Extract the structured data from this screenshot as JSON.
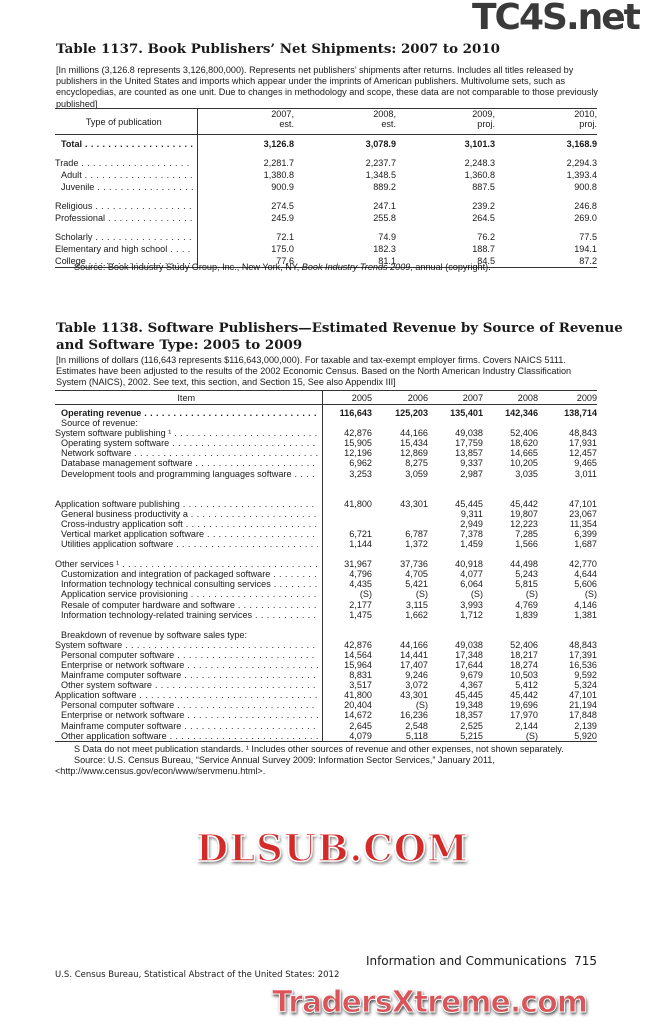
{
  "t1137": {
    "title": "Table 1137. Book Publishers’ Net Shipments: 2007 to 2010",
    "headnote": "[In millions (3,126.8 represents 3,126,800,000). Represents net publishers’ shipments after returns. Includes all titles released by publishers in the United States and  imports which appear under the imprints of American publishers. Multivolume sets, such as encyclopedias, are counted as one unit. Due to changes in methodology and scope, these data are not comparable to those previously published]",
    "stub_header": "Type of publication",
    "columns": [
      [
        "2007,",
        "est."
      ],
      [
        "2008,",
        "est."
      ],
      [
        "2009,",
        "proj."
      ],
      [
        "2010,",
        "proj."
      ]
    ],
    "rows": [
      {
        "label": "Total",
        "indent": 1,
        "bold": true,
        "values": [
          "3,126.8",
          "3,078.9",
          "3,101.3",
          "3,168.9"
        ]
      },
      {
        "gap": true
      },
      {
        "label": "Trade",
        "indent": 0,
        "values": [
          "2,281.7",
          "2,237.7",
          "2,248.3",
          "2,294.3"
        ]
      },
      {
        "label": "Adult",
        "indent": 1,
        "values": [
          "1,380.8",
          "1,348.5",
          "1,360.8",
          "1,393.4"
        ]
      },
      {
        "label": "Juvenile",
        "indent": 1,
        "values": [
          "900.9",
          "889.2",
          "887.5",
          "900.8"
        ]
      },
      {
        "gap": true
      },
      {
        "label": "Religious",
        "indent": 0,
        "values": [
          "274.5",
          "247.1",
          "239.2",
          "246.8"
        ]
      },
      {
        "label": "Professional",
        "indent": 0,
        "values": [
          "245.9",
          "255.8",
          "264.5",
          "269.0"
        ]
      },
      {
        "gap": true
      },
      {
        "label": "Scholarly",
        "indent": 0,
        "values": [
          "72.1",
          "74.9",
          "76.2",
          "77.5"
        ]
      },
      {
        "label": "Elementary and high school",
        "indent": 0,
        "values": [
          "175.0",
          "182.3",
          "188.7",
          "194.1"
        ]
      },
      {
        "label": "College",
        "indent": 0,
        "values": [
          "77.6",
          "81.1",
          "84.5",
          "87.2"
        ]
      }
    ],
    "source_prefix": "Source: Book Industry Study Group, Inc., New York, NY, ",
    "source_italic": "Book Industry Trends 2009",
    "source_suffix": ", annual (copyright)."
  },
  "t1138": {
    "title_line1": "Table 1138. Software Publishers—Estimated Revenue by Source of Revenue",
    "title_line2": "and Software Type: 2005 to 2009",
    "headnote": "[In millions of dollars (116,643 represents $116,643,000,000). For taxable and tax-exempt employer firms. Covers NAICS 5111. Estimates have been adjusted to the  results of the 2002 Economic Census. Based on the North American Industry Classification System (NAICS), 2002. See text, this section, and Section 15, See also Appendix III]",
    "stub_header": "Item",
    "columns": [
      "2005",
      "2006",
      "2007",
      "2008",
      "2009"
    ],
    "rows": [
      {
        "label": "Operating revenue",
        "indent": 1,
        "bold": true,
        "values": [
          "116,643",
          "125,203",
          "135,401",
          "142,346",
          "138,714"
        ]
      },
      {
        "label": "Source of revenue:",
        "indent": 1,
        "nodots": true,
        "values": [
          "",
          "",
          "",
          "",
          ""
        ]
      },
      {
        "label": "System software publishing ¹",
        "indent": 0,
        "values": [
          "42,876",
          "44,166",
          "49,038",
          "52,406",
          "48,843"
        ]
      },
      {
        "label": "Operating system software",
        "indent": 1,
        "values": [
          "15,905",
          "15,434",
          "17,759",
          "18,620",
          "17,931"
        ]
      },
      {
        "label": "Network software",
        "indent": 1,
        "values": [
          "12,196",
          "12,869",
          "13,857",
          "14,665",
          "12,457"
        ]
      },
      {
        "label": "Database management software",
        "indent": 1,
        "values": [
          "6,962",
          "8,275",
          "9,337",
          "10,205",
          "9,465"
        ]
      },
      {
        "label": "Development tools and programming languages software",
        "indent": 1,
        "values": [
          "3,253",
          "3,059",
          "2,987",
          "3,035",
          "3,011"
        ]
      },
      {
        "gap": true
      },
      {
        "gap": true
      },
      {
        "label": "Application software publishing",
        "indent": 0,
        "values": [
          "41,800",
          "43,301",
          "45,445",
          "45,442",
          "47,101"
        ]
      },
      {
        "label": "General business productivity a",
        "indent": 1,
        "values": [
          "",
          "",
          "9,311",
          "19,807",
          "23,067"
        ]
      },
      {
        "label": "Cross-industry application soft",
        "indent": 1,
        "values": [
          "",
          "",
          "2,949",
          "12,223",
          "11,354"
        ]
      },
      {
        "label": "Vertical market application software",
        "indent": 1,
        "values": [
          "6,721",
          "6,787",
          "7,378",
          "7,285",
          "6,399"
        ]
      },
      {
        "label": "Utilities application software",
        "indent": 1,
        "values": [
          "1,144",
          "1,372",
          "1,459",
          "1,566",
          "1,687"
        ]
      },
      {
        "gap": true
      },
      {
        "label": "Other services ¹",
        "indent": 0,
        "values": [
          "31,967",
          "37,736",
          "40,918",
          "44,498",
          "42,770"
        ]
      },
      {
        "label": "Customization and integration of packaged software",
        "indent": 1,
        "values": [
          "4,796",
          "4,705",
          "4,077",
          "5,243",
          "4,644"
        ]
      },
      {
        "label": "Information technology technical consulting services",
        "indent": 1,
        "values": [
          "4,435",
          "5,421",
          "6,064",
          "5,815",
          "5,606"
        ]
      },
      {
        "label": "Application service provisioning",
        "indent": 1,
        "values": [
          "(S)",
          "(S)",
          "(S)",
          "(S)",
          "(S)"
        ]
      },
      {
        "label": "Resale of computer hardware and software",
        "indent": 1,
        "values": [
          "2,177",
          "3,115",
          "3,993",
          "4,769",
          "4,146"
        ]
      },
      {
        "label": "Information technology-related training services",
        "indent": 1,
        "values": [
          "1,475",
          "1,662",
          "1,712",
          "1,839",
          "1,381"
        ]
      },
      {
        "gap": true
      },
      {
        "label": "Breakdown of revenue by software sales type:",
        "indent": 1,
        "nodots": true,
        "values": [
          "",
          "",
          "",
          "",
          ""
        ]
      },
      {
        "label": "System software",
        "indent": 0,
        "values": [
          "42,876",
          "44,166",
          "49,038",
          "52,406",
          "48,843"
        ]
      },
      {
        "label": "Personal computer software",
        "indent": 1,
        "values": [
          "14,564",
          "14,441",
          "17,348",
          "18,217",
          "17,391"
        ]
      },
      {
        "label": "Enterprise or network software",
        "indent": 1,
        "values": [
          "15,964",
          "17,407",
          "17,644",
          "18,274",
          "16,536"
        ]
      },
      {
        "label": "Mainframe computer software",
        "indent": 1,
        "values": [
          "8,831",
          "9,246",
          "9,679",
          "10,503",
          "9,592"
        ]
      },
      {
        "label": "Other system software",
        "indent": 1,
        "values": [
          "3,517",
          "3,072",
          "4,367",
          "5,412",
          "5,324"
        ]
      },
      {
        "label": "Application software",
        "indent": 0,
        "values": [
          "41,800",
          "43,301",
          "45,445",
          "45,442",
          "47,101"
        ]
      },
      {
        "label": "Personal computer software",
        "indent": 1,
        "values": [
          "20,404",
          "(S)",
          "19,348",
          "19,696",
          "21,194"
        ]
      },
      {
        "label": "Enterprise or network software",
        "indent": 1,
        "values": [
          "14,672",
          "16,236",
          "18,357",
          "17,970",
          "17,848"
        ]
      },
      {
        "label": "Mainframe computer software",
        "indent": 1,
        "values": [
          "2,645",
          "2,548",
          "2,525",
          "2,144",
          "2,139"
        ]
      },
      {
        "label": "Other application software",
        "indent": 1,
        "values": [
          "4,079",
          "5,118",
          "5,215",
          "(S)",
          "5,920"
        ]
      }
    ],
    "footnote": "S Data do not meet publication standards. ¹ Includes other sources of revenue and other expenses, not shown separately.",
    "source_line1": "Source: U.S. Census Bureau, “Service Annual Survey 2009: Information Sector Services,” January 2011,",
    "source_line2": "<http://www.census.gov/econ/www/servmenu.html>."
  },
  "footer": {
    "section": "Information and Communications",
    "page": "715",
    "publisher": "U.S. Census Bureau, Statistical Abstract of the United States: 2012"
  },
  "watermarks": {
    "top": "TC4S.net",
    "middle": "DLSUB.COM",
    "bottom": "TradersXtreme.com"
  },
  "colors": {
    "watermark_red": "#d42a2a",
    "watermark_dark": "#3a3a3a"
  }
}
